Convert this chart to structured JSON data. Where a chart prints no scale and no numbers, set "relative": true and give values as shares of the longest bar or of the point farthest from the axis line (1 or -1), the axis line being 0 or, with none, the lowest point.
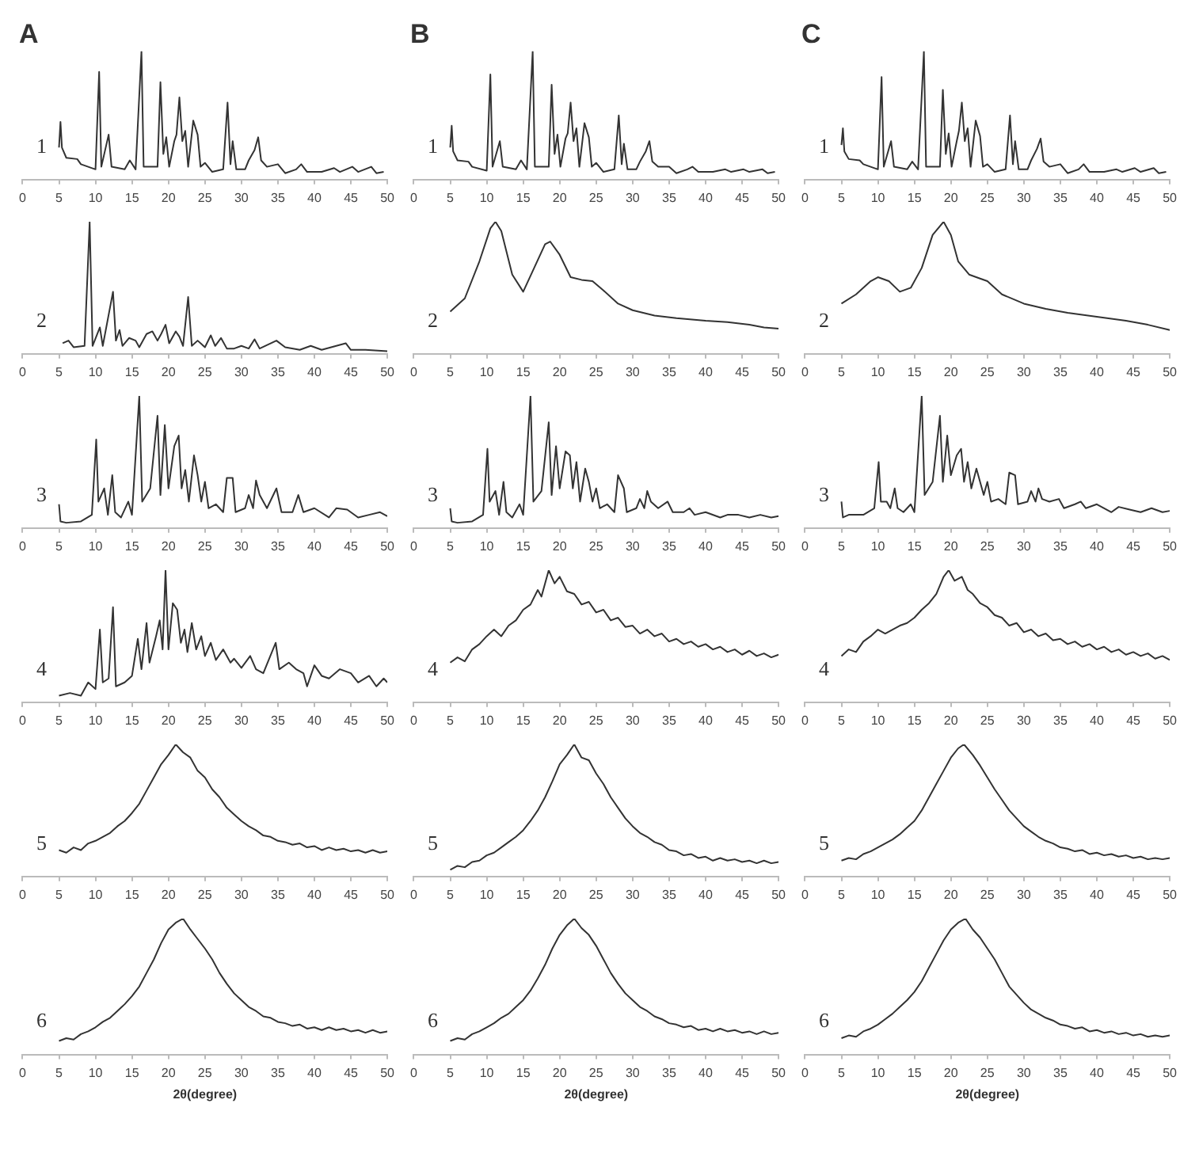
{
  "chart_data": [
    {
      "type": "line",
      "title": "A",
      "relative": true,
      "annotations": [
        "1"
      ],
      "xlim": [
        0,
        50
      ],
      "xticks": [
        0,
        5,
        10,
        15,
        20,
        25,
        30,
        35,
        40,
        45,
        50
      ],
      "series": [
        {
          "color": "#333333",
          "x": [
            5,
            5.2,
            5.4,
            6,
            7.5,
            8,
            10,
            10.5,
            10.8,
            11.8,
            12.2,
            14,
            14.7,
            15.5,
            16.3,
            16.6,
            18.5,
            18.9,
            19.3,
            19.7,
            20.1,
            20.8,
            21.1,
            21.5,
            21.9,
            22.3,
            22.7,
            23.4,
            24,
            24.4,
            25,
            26,
            27.5,
            28.1,
            28.5,
            28.8,
            29.3,
            30.5,
            31,
            31.8,
            32.3,
            32.7,
            33.5,
            35,
            36,
            37.5,
            38.2,
            39,
            41,
            42.7,
            43.5,
            45.2,
            46,
            47.8,
            48.5,
            49.5
          ],
          "values": [
            0.25,
            0.45,
            0.25,
            0.17,
            0.16,
            0.12,
            0.08,
            0.84,
            0.1,
            0.35,
            0.1,
            0.08,
            0.15,
            0.08,
            1,
            0.1,
            0.1,
            0.76,
            0.2,
            0.33,
            0.1,
            0.3,
            0.35,
            0.64,
            0.3,
            0.38,
            0.1,
            0.46,
            0.35,
            0.1,
            0.13,
            0.06,
            0.08,
            0.6,
            0.12,
            0.3,
            0.08,
            0.08,
            0.15,
            0.23,
            0.33,
            0.15,
            0.1,
            0.12,
            0.05,
            0.08,
            0.12,
            0.06,
            0.06,
            0.09,
            0.06,
            0.1,
            0.06,
            0.1,
            0.05,
            0.06
          ]
        }
      ]
    },
    {
      "type": "line",
      "title": "B",
      "relative": true,
      "annotations": [
        "1"
      ],
      "xlim": [
        0,
        50
      ],
      "xticks": [
        0,
        5,
        10,
        15,
        20,
        25,
        30,
        35,
        40,
        45,
        50
      ],
      "series": [
        {
          "color": "#333333",
          "x": [
            5,
            5.2,
            5.4,
            6,
            7.5,
            8,
            10,
            10.5,
            10.8,
            11.8,
            12.2,
            14,
            14.7,
            15.5,
            16.3,
            16.6,
            18.5,
            18.9,
            19.3,
            19.7,
            20.1,
            20.8,
            21.1,
            21.5,
            21.9,
            22.3,
            22.7,
            23.4,
            24,
            24.4,
            25,
            26,
            27.5,
            28.1,
            28.5,
            28.8,
            29.3,
            30.5,
            31,
            31.8,
            32.3,
            32.7,
            33.5,
            35,
            36,
            37.5,
            38.2,
            39,
            41,
            42.7,
            43.5,
            45.2,
            46,
            47.8,
            48.5,
            49.5
          ],
          "values": [
            0.25,
            0.42,
            0.22,
            0.15,
            0.14,
            0.1,
            0.07,
            0.82,
            0.1,
            0.3,
            0.1,
            0.08,
            0.15,
            0.08,
            1,
            0.1,
            0.1,
            0.74,
            0.2,
            0.35,
            0.1,
            0.32,
            0.36,
            0.6,
            0.3,
            0.4,
            0.1,
            0.44,
            0.33,
            0.1,
            0.13,
            0.06,
            0.08,
            0.5,
            0.12,
            0.28,
            0.08,
            0.08,
            0.14,
            0.22,
            0.3,
            0.14,
            0.1,
            0.1,
            0.05,
            0.08,
            0.1,
            0.06,
            0.06,
            0.08,
            0.06,
            0.08,
            0.06,
            0.08,
            0.05,
            0.06
          ]
        }
      ]
    },
    {
      "type": "line",
      "title": "C",
      "relative": true,
      "annotations": [
        "1"
      ],
      "xlim": [
        0,
        50
      ],
      "xticks": [
        0,
        5,
        10,
        15,
        20,
        25,
        30,
        35,
        40,
        45,
        50
      ],
      "series": [
        {
          "color": "#333333",
          "x": [
            5,
            5.2,
            5.4,
            6,
            7.5,
            8,
            10,
            10.5,
            10.8,
            11.8,
            12.2,
            14,
            14.7,
            15.5,
            16.3,
            16.6,
            18.5,
            18.9,
            19.3,
            19.7,
            20.1,
            20.8,
            21.1,
            21.5,
            21.9,
            22.3,
            22.7,
            23.4,
            24,
            24.4,
            25,
            26,
            27.5,
            28.1,
            28.5,
            28.8,
            29.3,
            30.5,
            31,
            31.8,
            32.3,
            32.7,
            33.5,
            35,
            36,
            37.5,
            38.2,
            39,
            41,
            42.7,
            43.5,
            45.2,
            46,
            47.8,
            48.5,
            49.5
          ],
          "values": [
            0.27,
            0.4,
            0.22,
            0.16,
            0.15,
            0.12,
            0.08,
            0.8,
            0.1,
            0.3,
            0.1,
            0.08,
            0.14,
            0.08,
            1,
            0.1,
            0.1,
            0.7,
            0.2,
            0.36,
            0.1,
            0.3,
            0.38,
            0.6,
            0.3,
            0.4,
            0.1,
            0.46,
            0.34,
            0.1,
            0.12,
            0.06,
            0.08,
            0.5,
            0.12,
            0.3,
            0.08,
            0.08,
            0.15,
            0.24,
            0.32,
            0.14,
            0.1,
            0.12,
            0.05,
            0.08,
            0.12,
            0.06,
            0.06,
            0.08,
            0.06,
            0.09,
            0.06,
            0.09,
            0.05,
            0.06
          ]
        }
      ]
    },
    {
      "type": "line",
      "relative": true,
      "annotations": [
        "2"
      ],
      "xlim": [
        0,
        50
      ],
      "xticks": [
        0,
        5,
        10,
        15,
        20,
        25,
        30,
        35,
        40,
        45,
        50
      ],
      "series": [
        {
          "color": "#333333",
          "x": [
            5.5,
            6.3,
            7,
            8.5,
            9.2,
            9.6,
            10.6,
            11,
            12.4,
            12.8,
            13.3,
            13.7,
            14.6,
            15.5,
            16,
            17,
            17.8,
            18.5,
            19,
            19.6,
            20.1,
            21,
            21.5,
            22,
            22.7,
            23.2,
            24,
            25,
            25.8,
            26.4,
            27.2,
            28,
            29,
            30,
            31,
            31.8,
            32.5,
            34.8,
            36,
            38,
            39.5,
            41,
            44.3,
            45,
            47,
            50
          ],
          "values": [
            0.08,
            0.1,
            0.05,
            0.06,
            1,
            0.06,
            0.2,
            0.06,
            0.47,
            0.1,
            0.18,
            0.06,
            0.12,
            0.1,
            0.05,
            0.15,
            0.17,
            0.1,
            0.15,
            0.22,
            0.08,
            0.17,
            0.13,
            0.06,
            0.43,
            0.06,
            0.1,
            0.05,
            0.14,
            0.06,
            0.12,
            0.04,
            0.04,
            0.06,
            0.04,
            0.11,
            0.04,
            0.1,
            0.05,
            0.03,
            0.06,
            0.03,
            0.08,
            0.03,
            0.03,
            0.02
          ]
        }
      ]
    },
    {
      "type": "line",
      "relative": true,
      "annotations": [
        "2"
      ],
      "xlim": [
        0,
        50
      ],
      "xticks": [
        0,
        5,
        10,
        15,
        20,
        25,
        30,
        35,
        40,
        45,
        50
      ],
      "series": [
        {
          "color": "#333333",
          "x": [
            5,
            7,
            9,
            10.5,
            11.2,
            12,
            13.5,
            15,
            16.5,
            18,
            18.7,
            20,
            21.5,
            23,
            24.5,
            26,
            28,
            30,
            33,
            36,
            40,
            43,
            46,
            48,
            50
          ],
          "values": [
            0.32,
            0.42,
            0.7,
            0.95,
            1,
            0.93,
            0.6,
            0.47,
            0.65,
            0.83,
            0.85,
            0.75,
            0.58,
            0.56,
            0.55,
            0.48,
            0.38,
            0.33,
            0.29,
            0.27,
            0.25,
            0.24,
            0.22,
            0.2,
            0.19
          ]
        }
      ]
    },
    {
      "type": "line",
      "relative": true,
      "annotations": [
        "2"
      ],
      "xlim": [
        0,
        50
      ],
      "xticks": [
        0,
        5,
        10,
        15,
        20,
        25,
        30,
        35,
        40,
        45,
        50
      ],
      "series": [
        {
          "color": "#333333",
          "x": [
            5,
            7,
            9,
            10,
            11.5,
            13,
            14.5,
            16,
            17.5,
            19,
            20,
            21,
            22.5,
            24,
            25,
            27,
            30,
            33,
            36,
            40,
            44,
            47,
            50
          ],
          "values": [
            0.38,
            0.45,
            0.55,
            0.58,
            0.55,
            0.47,
            0.5,
            0.65,
            0.9,
            1,
            0.9,
            0.7,
            0.6,
            0.57,
            0.55,
            0.45,
            0.38,
            0.34,
            0.31,
            0.28,
            0.25,
            0.22,
            0.18
          ]
        }
      ]
    },
    {
      "type": "line",
      "relative": true,
      "annotations": [
        "3"
      ],
      "xlim": [
        0,
        50
      ],
      "xticks": [
        0,
        5,
        10,
        15,
        20,
        25,
        30,
        35,
        40,
        45,
        50
      ],
      "series": [
        {
          "color": "#333333",
          "x": [
            5,
            5.2,
            6,
            8,
            9.5,
            10.1,
            10.4,
            11.2,
            11.7,
            12.3,
            12.7,
            13.5,
            14.5,
            15,
            16,
            16.4,
            17.5,
            18.5,
            18.9,
            19.5,
            20,
            20.8,
            21.4,
            21.8,
            22.3,
            22.8,
            23.5,
            24,
            24.5,
            25,
            25.5,
            26.5,
            27.5,
            28,
            28.8,
            29.2,
            30.5,
            31,
            31.6,
            32,
            32.5,
            33.5,
            34.8,
            35.5,
            37,
            37.8,
            38.5,
            40,
            42,
            43,
            44.5,
            46,
            47.5,
            49,
            50
          ],
          "values": [
            0.18,
            0.05,
            0.04,
            0.05,
            0.1,
            0.67,
            0.2,
            0.3,
            0.1,
            0.4,
            0.12,
            0.08,
            0.2,
            0.1,
            1,
            0.2,
            0.3,
            0.85,
            0.25,
            0.78,
            0.3,
            0.62,
            0.7,
            0.3,
            0.44,
            0.2,
            0.55,
            0.4,
            0.2,
            0.35,
            0.15,
            0.18,
            0.12,
            0.38,
            0.38,
            0.12,
            0.15,
            0.25,
            0.15,
            0.36,
            0.25,
            0.15,
            0.3,
            0.12,
            0.12,
            0.25,
            0.12,
            0.15,
            0.08,
            0.15,
            0.14,
            0.08,
            0.1,
            0.12,
            0.09
          ]
        }
      ]
    },
    {
      "type": "line",
      "relative": true,
      "annotations": [
        "3"
      ],
      "xlim": [
        0,
        50
      ],
      "xticks": [
        0,
        5,
        10,
        15,
        20,
        25,
        30,
        35,
        40,
        45,
        50
      ],
      "series": [
        {
          "color": "#333333",
          "x": [
            5,
            5.2,
            6,
            8,
            9.5,
            10.1,
            10.4,
            11.2,
            11.7,
            12.3,
            12.7,
            13.5,
            14.5,
            15,
            16,
            16.4,
            17.5,
            18.5,
            18.9,
            19.5,
            20,
            20.8,
            21.4,
            21.8,
            22.3,
            22.8,
            23.5,
            24,
            24.5,
            25,
            25.5,
            26.5,
            27.5,
            28,
            28.8,
            29.2,
            30.5,
            31,
            31.6,
            32,
            32.5,
            33.5,
            34.8,
            35.5,
            37,
            37.8,
            38.5,
            40,
            42,
            43,
            44.5,
            46,
            47.5,
            49,
            50
          ],
          "values": [
            0.15,
            0.05,
            0.04,
            0.05,
            0.1,
            0.6,
            0.2,
            0.28,
            0.1,
            0.35,
            0.12,
            0.08,
            0.18,
            0.1,
            1,
            0.2,
            0.28,
            0.8,
            0.25,
            0.62,
            0.3,
            0.58,
            0.55,
            0.3,
            0.5,
            0.2,
            0.45,
            0.35,
            0.2,
            0.3,
            0.15,
            0.18,
            0.12,
            0.4,
            0.3,
            0.12,
            0.15,
            0.22,
            0.15,
            0.28,
            0.2,
            0.15,
            0.2,
            0.12,
            0.12,
            0.15,
            0.1,
            0.12,
            0.08,
            0.1,
            0.1,
            0.08,
            0.1,
            0.08,
            0.09
          ]
        }
      ]
    },
    {
      "type": "line",
      "relative": true,
      "annotations": [
        "3"
      ],
      "xlim": [
        0,
        50
      ],
      "xticks": [
        0,
        5,
        10,
        15,
        20,
        25,
        30,
        35,
        40,
        45,
        50
      ],
      "series": [
        {
          "color": "#333333",
          "x": [
            5,
            5.2,
            6,
            8,
            9.5,
            10.1,
            10.4,
            11.2,
            11.7,
            12.3,
            12.7,
            13.5,
            14.5,
            15,
            16,
            16.4,
            17.5,
            18.5,
            18.9,
            19.5,
            20,
            20.8,
            21.4,
            21.8,
            22.3,
            22.8,
            23.5,
            24,
            24.5,
            25,
            25.5,
            26.5,
            27.5,
            28,
            28.8,
            29.2,
            30.5,
            31,
            31.6,
            32,
            32.5,
            33.5,
            34.8,
            35.5,
            37,
            37.8,
            38.5,
            40,
            42,
            43,
            44.5,
            46,
            47.5,
            49,
            50
          ],
          "values": [
            0.2,
            0.08,
            0.1,
            0.1,
            0.15,
            0.5,
            0.2,
            0.2,
            0.15,
            0.3,
            0.15,
            0.12,
            0.18,
            0.12,
            1,
            0.25,
            0.35,
            0.85,
            0.35,
            0.7,
            0.4,
            0.55,
            0.6,
            0.35,
            0.5,
            0.3,
            0.45,
            0.35,
            0.25,
            0.35,
            0.2,
            0.22,
            0.18,
            0.42,
            0.4,
            0.18,
            0.2,
            0.28,
            0.2,
            0.3,
            0.22,
            0.2,
            0.22,
            0.15,
            0.18,
            0.2,
            0.15,
            0.18,
            0.12,
            0.16,
            0.14,
            0.12,
            0.15,
            0.12,
            0.13
          ]
        }
      ]
    },
    {
      "type": "line",
      "relative": true,
      "annotations": [
        "4"
      ],
      "xlim": [
        0,
        50
      ],
      "xticks": [
        0,
        5,
        10,
        15,
        20,
        25,
        30,
        35,
        40,
        45,
        50
      ],
      "series": [
        {
          "color": "#333333",
          "x": [
            5,
            6.5,
            8,
            9,
            10,
            10.6,
            11,
            11.8,
            12.4,
            12.8,
            14,
            15,
            15.8,
            16.3,
            17,
            17.4,
            18.3,
            18.8,
            19.2,
            19.6,
            20,
            20.6,
            21.2,
            21.7,
            22.2,
            22.6,
            23.2,
            23.8,
            24.5,
            25,
            25.8,
            26.5,
            27.5,
            28.5,
            29,
            30,
            31.2,
            32,
            33,
            34.7,
            35.2,
            36.5,
            37.5,
            38.5,
            39,
            40,
            41,
            42,
            43.5,
            45,
            46,
            47.5,
            48.5,
            49.5,
            50
          ],
          "values": [
            0.05,
            0.07,
            0.05,
            0.15,
            0.1,
            0.55,
            0.15,
            0.18,
            0.72,
            0.12,
            0.15,
            0.2,
            0.48,
            0.25,
            0.6,
            0.3,
            0.5,
            0.62,
            0.4,
            1,
            0.4,
            0.75,
            0.7,
            0.45,
            0.55,
            0.38,
            0.6,
            0.4,
            0.5,
            0.35,
            0.45,
            0.32,
            0.4,
            0.3,
            0.33,
            0.26,
            0.35,
            0.25,
            0.22,
            0.45,
            0.25,
            0.3,
            0.25,
            0.22,
            0.12,
            0.28,
            0.2,
            0.18,
            0.25,
            0.22,
            0.15,
            0.2,
            0.12,
            0.18,
            0.15
          ]
        }
      ]
    },
    {
      "type": "line",
      "relative": true,
      "annotations": [
        "4"
      ],
      "xlim": [
        0,
        50
      ],
      "xticks": [
        0,
        5,
        10,
        15,
        20,
        25,
        30,
        35,
        40,
        45,
        50
      ],
      "series": [
        {
          "color": "#333333",
          "x": [
            5,
            6,
            7,
            8,
            9,
            10,
            11,
            12,
            13,
            14,
            15,
            16,
            17,
            17.5,
            18.5,
            19.3,
            20,
            21,
            22,
            23,
            24,
            25,
            26,
            27,
            28,
            29,
            30,
            31,
            32,
            33,
            34,
            35,
            36,
            37,
            38,
            39,
            40,
            41,
            42,
            43,
            44,
            45,
            46,
            47,
            48,
            49,
            50
          ],
          "values": [
            0.3,
            0.34,
            0.31,
            0.4,
            0.44,
            0.5,
            0.55,
            0.5,
            0.58,
            0.62,
            0.7,
            0.74,
            0.85,
            0.8,
            1,
            0.9,
            0.95,
            0.84,
            0.82,
            0.74,
            0.76,
            0.68,
            0.7,
            0.62,
            0.64,
            0.57,
            0.58,
            0.52,
            0.55,
            0.5,
            0.52,
            0.46,
            0.48,
            0.44,
            0.46,
            0.42,
            0.44,
            0.4,
            0.42,
            0.38,
            0.4,
            0.36,
            0.39,
            0.35,
            0.37,
            0.34,
            0.36
          ]
        }
      ]
    },
    {
      "type": "line",
      "relative": true,
      "annotations": [
        "4"
      ],
      "xlim": [
        0,
        50
      ],
      "xticks": [
        0,
        5,
        10,
        15,
        20,
        25,
        30,
        35,
        40,
        45,
        50
      ],
      "series": [
        {
          "color": "#333333",
          "x": [
            5,
            6,
            7,
            8,
            9,
            10,
            11,
            12,
            13,
            14,
            15,
            16,
            17,
            18,
            19,
            19.7,
            20.5,
            21.5,
            22.3,
            23,
            24,
            25,
            26,
            27,
            28,
            29,
            30,
            31,
            32,
            33,
            34,
            35,
            36,
            37,
            38,
            39,
            40,
            41,
            42,
            43,
            44,
            45,
            46,
            47,
            48,
            49,
            50
          ],
          "values": [
            0.35,
            0.4,
            0.38,
            0.46,
            0.5,
            0.55,
            0.52,
            0.55,
            0.58,
            0.6,
            0.64,
            0.7,
            0.75,
            0.82,
            0.95,
            1,
            0.92,
            0.95,
            0.85,
            0.82,
            0.75,
            0.72,
            0.66,
            0.64,
            0.58,
            0.6,
            0.53,
            0.55,
            0.5,
            0.52,
            0.47,
            0.48,
            0.44,
            0.46,
            0.42,
            0.44,
            0.4,
            0.42,
            0.38,
            0.4,
            0.36,
            0.38,
            0.35,
            0.37,
            0.33,
            0.35,
            0.32
          ]
        }
      ]
    },
    {
      "type": "line",
      "relative": true,
      "annotations": [
        "5"
      ],
      "xlim": [
        0,
        50
      ],
      "xticks": [
        0,
        5,
        10,
        15,
        20,
        25,
        30,
        35,
        40,
        45,
        50
      ],
      "series": [
        {
          "color": "#333333",
          "x": [
            5,
            6,
            7,
            8,
            9,
            10,
            11,
            12,
            13,
            14,
            15,
            16,
            17,
            18,
            19,
            20,
            21,
            22,
            23,
            24,
            25,
            26,
            27,
            28,
            29,
            30,
            31,
            32,
            33,
            34,
            35,
            36,
            37,
            38,
            39,
            40,
            41,
            42,
            43,
            44,
            45,
            46,
            47,
            48,
            49,
            50
          ],
          "values": [
            0.2,
            0.18,
            0.22,
            0.2,
            0.25,
            0.27,
            0.3,
            0.33,
            0.38,
            0.42,
            0.48,
            0.55,
            0.65,
            0.75,
            0.85,
            0.92,
            1,
            0.94,
            0.9,
            0.8,
            0.75,
            0.66,
            0.6,
            0.52,
            0.47,
            0.42,
            0.38,
            0.35,
            0.31,
            0.3,
            0.27,
            0.26,
            0.24,
            0.25,
            0.22,
            0.23,
            0.2,
            0.22,
            0.2,
            0.21,
            0.19,
            0.2,
            0.18,
            0.2,
            0.18,
            0.19
          ]
        }
      ]
    },
    {
      "type": "line",
      "relative": true,
      "annotations": [
        "5"
      ],
      "xlim": [
        0,
        50
      ],
      "xticks": [
        0,
        5,
        10,
        15,
        20,
        25,
        30,
        35,
        40,
        45,
        50
      ],
      "series": [
        {
          "color": "#333333",
          "x": [
            5,
            6,
            7,
            8,
            9,
            10,
            11,
            12,
            13,
            14,
            15,
            16,
            17,
            18,
            19,
            20,
            21,
            22,
            23,
            24,
            25,
            26,
            27,
            28,
            29,
            30,
            31,
            32,
            33,
            34,
            35,
            36,
            37,
            38,
            39,
            40,
            41,
            42,
            43,
            44,
            45,
            46,
            47,
            48,
            49,
            50
          ],
          "values": [
            0.05,
            0.08,
            0.07,
            0.11,
            0.12,
            0.16,
            0.18,
            0.22,
            0.26,
            0.3,
            0.35,
            0.42,
            0.5,
            0.6,
            0.72,
            0.85,
            0.92,
            1,
            0.9,
            0.88,
            0.78,
            0.7,
            0.6,
            0.52,
            0.44,
            0.38,
            0.33,
            0.3,
            0.26,
            0.24,
            0.2,
            0.19,
            0.16,
            0.17,
            0.14,
            0.15,
            0.12,
            0.14,
            0.12,
            0.13,
            0.11,
            0.12,
            0.1,
            0.12,
            0.1,
            0.11
          ]
        }
      ]
    },
    {
      "type": "line",
      "relative": true,
      "annotations": [
        "5"
      ],
      "xlim": [
        0,
        50
      ],
      "xticks": [
        0,
        5,
        10,
        15,
        20,
        25,
        30,
        35,
        40,
        45,
        50
      ],
      "series": [
        {
          "color": "#333333",
          "x": [
            5,
            6,
            7,
            8,
            9,
            10,
            11,
            12,
            13,
            14,
            15,
            16,
            17,
            18,
            19,
            20,
            21,
            21.8,
            23,
            24,
            25,
            26,
            27,
            28,
            29,
            30,
            31,
            32,
            33,
            34,
            35,
            36,
            37,
            38,
            39,
            40,
            41,
            42,
            43,
            44,
            45,
            46,
            47,
            48,
            49,
            50
          ],
          "values": [
            0.12,
            0.14,
            0.13,
            0.17,
            0.19,
            0.22,
            0.25,
            0.28,
            0.32,
            0.37,
            0.42,
            0.5,
            0.6,
            0.7,
            0.8,
            0.9,
            0.97,
            1,
            0.92,
            0.84,
            0.75,
            0.66,
            0.58,
            0.5,
            0.44,
            0.38,
            0.34,
            0.3,
            0.27,
            0.25,
            0.22,
            0.21,
            0.19,
            0.2,
            0.17,
            0.18,
            0.16,
            0.17,
            0.15,
            0.16,
            0.14,
            0.15,
            0.13,
            0.14,
            0.13,
            0.14
          ]
        }
      ]
    },
    {
      "type": "line",
      "relative": true,
      "annotations": [
        "6"
      ],
      "xlabel": "2θ(degree)",
      "xlim": [
        0,
        50
      ],
      "xticks": [
        0,
        5,
        10,
        15,
        20,
        25,
        30,
        35,
        40,
        45,
        50
      ],
      "series": [
        {
          "color": "#333333",
          "x": [
            5,
            6,
            7,
            8,
            9,
            10,
            11,
            12,
            13,
            14,
            15,
            16,
            17,
            18,
            19,
            20,
            21,
            22,
            23,
            24,
            25,
            26,
            27,
            28,
            29,
            30,
            31,
            32,
            33,
            34,
            35,
            36,
            37,
            38,
            39,
            40,
            41,
            42,
            43,
            44,
            45,
            46,
            47,
            48,
            49,
            50
          ],
          "values": [
            0.1,
            0.12,
            0.11,
            0.15,
            0.17,
            0.2,
            0.24,
            0.27,
            0.32,
            0.37,
            0.43,
            0.5,
            0.6,
            0.7,
            0.82,
            0.92,
            0.97,
            1,
            0.92,
            0.85,
            0.78,
            0.7,
            0.6,
            0.52,
            0.45,
            0.4,
            0.35,
            0.32,
            0.28,
            0.27,
            0.24,
            0.23,
            0.21,
            0.22,
            0.19,
            0.2,
            0.18,
            0.2,
            0.18,
            0.19,
            0.17,
            0.18,
            0.16,
            0.18,
            0.16,
            0.17
          ]
        }
      ]
    },
    {
      "type": "line",
      "relative": true,
      "annotations": [
        "6"
      ],
      "xlabel": "2θ(degree)",
      "xlim": [
        0,
        50
      ],
      "xticks": [
        0,
        5,
        10,
        15,
        20,
        25,
        30,
        35,
        40,
        45,
        50
      ],
      "series": [
        {
          "color": "#333333",
          "x": [
            5,
            6,
            7,
            8,
            9,
            10,
            11,
            12,
            13,
            14,
            15,
            16,
            17,
            18,
            19,
            20,
            21,
            22,
            23,
            24,
            25,
            26,
            27,
            28,
            29,
            30,
            31,
            32,
            33,
            34,
            35,
            36,
            37,
            38,
            39,
            40,
            41,
            42,
            43,
            44,
            45,
            46,
            47,
            48,
            49,
            50
          ],
          "values": [
            0.1,
            0.12,
            0.11,
            0.15,
            0.17,
            0.2,
            0.23,
            0.27,
            0.3,
            0.35,
            0.4,
            0.47,
            0.56,
            0.66,
            0.78,
            0.88,
            0.95,
            1,
            0.93,
            0.88,
            0.8,
            0.7,
            0.6,
            0.52,
            0.45,
            0.4,
            0.35,
            0.32,
            0.28,
            0.26,
            0.23,
            0.22,
            0.2,
            0.21,
            0.18,
            0.19,
            0.17,
            0.19,
            0.17,
            0.18,
            0.16,
            0.17,
            0.15,
            0.17,
            0.15,
            0.16
          ]
        }
      ]
    },
    {
      "type": "line",
      "relative": true,
      "annotations": [
        "6"
      ],
      "xlabel": "2θ(degree)",
      "xlim": [
        0,
        50
      ],
      "xticks": [
        0,
        5,
        10,
        15,
        20,
        25,
        30,
        35,
        40,
        45,
        50
      ],
      "series": [
        {
          "color": "#333333",
          "x": [
            5,
            6,
            7,
            8,
            9,
            10,
            11,
            12,
            13,
            14,
            15,
            16,
            17,
            18,
            19,
            20,
            21,
            22,
            23,
            24,
            25,
            26,
            27,
            28,
            29,
            30,
            31,
            32,
            33,
            34,
            35,
            36,
            37,
            38,
            39,
            40,
            41,
            42,
            43,
            44,
            45,
            46,
            47,
            48,
            49,
            50
          ],
          "values": [
            0.12,
            0.14,
            0.13,
            0.17,
            0.19,
            0.22,
            0.26,
            0.3,
            0.35,
            0.4,
            0.46,
            0.54,
            0.64,
            0.74,
            0.84,
            0.92,
            0.97,
            1,
            0.92,
            0.86,
            0.78,
            0.7,
            0.6,
            0.5,
            0.44,
            0.38,
            0.33,
            0.3,
            0.27,
            0.25,
            0.22,
            0.21,
            0.19,
            0.2,
            0.17,
            0.18,
            0.16,
            0.17,
            0.15,
            0.16,
            0.14,
            0.15,
            0.13,
            0.14,
            0.13,
            0.14
          ]
        }
      ]
    }
  ]
}
